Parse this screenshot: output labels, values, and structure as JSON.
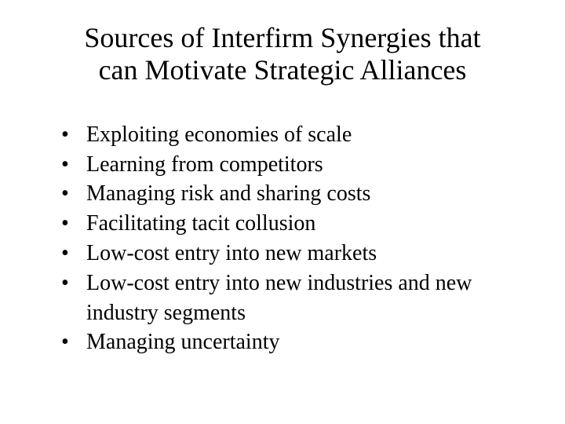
{
  "slide": {
    "title_line1": "Sources of Interfirm Synergies that",
    "title_line2": "can Motivate Strategic Alliances",
    "bullets": [
      "Exploiting economies of scale",
      "Learning from competitors",
      "Managing risk and sharing costs",
      "Facilitating tacit collusion",
      "Low-cost entry into new markets",
      "Low-cost entry into new industries and new industry segments",
      "Managing uncertainty"
    ],
    "colors": {
      "background": "#ffffff",
      "text": "#000000"
    },
    "typography": {
      "title_fontsize": 36,
      "body_fontsize": 28,
      "font_family": "Times New Roman"
    }
  }
}
